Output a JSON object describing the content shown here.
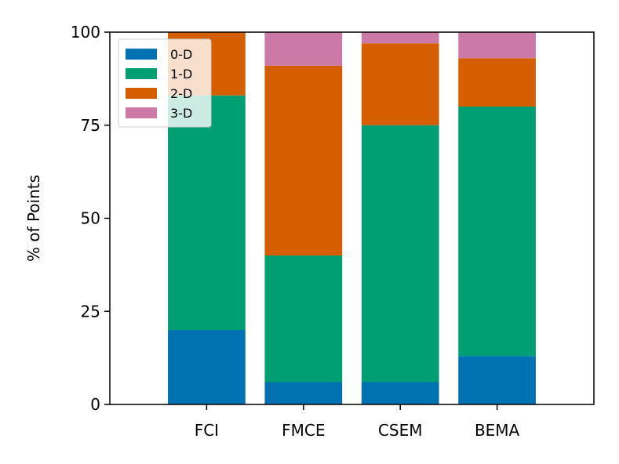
{
  "chart_data": {
    "type": "bar",
    "stacked": true,
    "categories": [
      "FCI",
      "FMCE",
      "CSEM",
      "BEMA"
    ],
    "series": [
      {
        "name": "0-D",
        "color": "#0072b2",
        "values": [
          20,
          6,
          6,
          13
        ]
      },
      {
        "name": "1-D",
        "color": "#009e73",
        "values": [
          63,
          34,
          69,
          67
        ]
      },
      {
        "name": "2-D",
        "color": "#d55e00",
        "values": [
          17,
          51,
          22,
          13
        ]
      },
      {
        "name": "3-D",
        "color": "#cc79a7",
        "values": [
          0,
          9,
          3,
          7
        ]
      }
    ],
    "ylabel": "% of Points",
    "ylim": [
      0,
      100
    ],
    "yticks": [
      0,
      25,
      50,
      75,
      100
    ],
    "xlim": [
      -1,
      4
    ],
    "grid": false,
    "legend_position": "top-left"
  }
}
